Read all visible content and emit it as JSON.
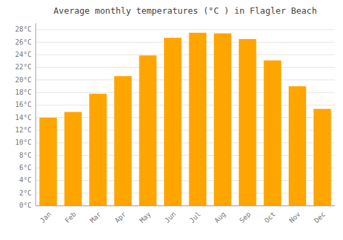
{
  "chart_data": {
    "type": "bar",
    "title": "Average monthly temperatures (°C ) in Flagler Beach",
    "categories": [
      "Jan",
      "Feb",
      "Mar",
      "Apr",
      "May",
      "Jun",
      "Jul",
      "Aug",
      "Sep",
      "Oct",
      "Nov",
      "Dec"
    ],
    "values": [
      14.0,
      14.9,
      17.8,
      20.6,
      23.9,
      26.7,
      27.5,
      27.4,
      26.5,
      23.1,
      19.0,
      15.4
    ],
    "color": "#FFA500",
    "ylim": [
      0,
      29
    ],
    "yticks": [
      {
        "value": 0,
        "label": "0°C"
      },
      {
        "value": 2,
        "label": "2°C"
      },
      {
        "value": 4,
        "label": "4°C"
      },
      {
        "value": 6,
        "label": "6°C"
      },
      {
        "value": 8,
        "label": "8°C"
      },
      {
        "value": 10,
        "label": "10°C"
      },
      {
        "value": 12,
        "label": "12°C"
      },
      {
        "value": 14,
        "label": "14°C"
      },
      {
        "value": 16,
        "label": "16°C"
      },
      {
        "value": 18,
        "label": "18°C"
      },
      {
        "value": 20,
        "label": "20°C"
      },
      {
        "value": 22,
        "label": "22°C"
      },
      {
        "value": 24,
        "label": "24°C"
      },
      {
        "value": 26,
        "label": "26°C"
      },
      {
        "value": 28,
        "label": "28°C"
      }
    ],
    "grid": true
  }
}
